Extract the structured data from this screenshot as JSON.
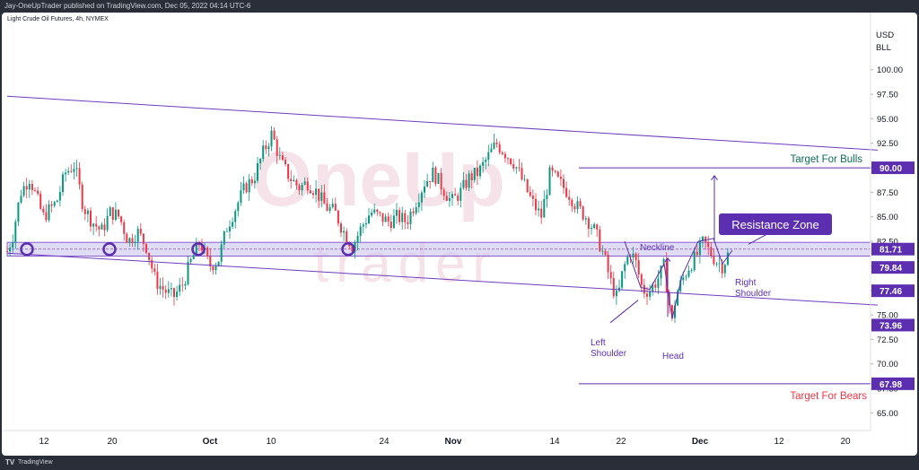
{
  "header": {
    "publisher": "Jay-OneUpTrader published on TradingView.com, Dec 05, 2022 04:14 UTC-6"
  },
  "chart_title": "Light Crude Oil Futures, 4h, NYMEX",
  "footer": {
    "brand_icon": "TV",
    "brand": "TradingView"
  },
  "watermark": "OneUp trader",
  "chart_data": {
    "type": "candlestick",
    "currency": "USD",
    "unit": "BLL",
    "y_ticks": [
      65.0,
      67.5,
      70.0,
      72.5,
      75.0,
      77.5,
      80.0,
      82.5,
      85.0,
      87.5,
      90.0,
      92.5,
      95.0,
      97.5,
      100.0
    ],
    "ylim": [
      63.3,
      104.0
    ],
    "x_ticks": [
      "12",
      "20",
      "Oct",
      "10",
      "24",
      "Nov",
      "14",
      "22",
      "Dec",
      "12",
      "20"
    ],
    "price_labels": [
      {
        "value": "90.00",
        "style": "target"
      },
      {
        "value": "81.71",
        "style": "resistance"
      },
      {
        "value": "79.84",
        "style": "normal"
      },
      {
        "value": "77.46",
        "style": "normal"
      },
      {
        "value": "73.96",
        "style": "normal"
      },
      {
        "value": "67.98",
        "style": "normal"
      }
    ],
    "resistance_zone": [
      81.0,
      82.4
    ],
    "price_path": [
      [
        0,
        81.5
      ],
      [
        6,
        83
      ],
      [
        15,
        87.5
      ],
      [
        25,
        89
      ],
      [
        40,
        85
      ],
      [
        55,
        86.5
      ],
      [
        65,
        89.5
      ],
      [
        75,
        90.3
      ],
      [
        85,
        86
      ],
      [
        95,
        84.5
      ],
      [
        105,
        83.5
      ],
      [
        115,
        85.5
      ],
      [
        125,
        85
      ],
      [
        135,
        82.5
      ],
      [
        145,
        83.5
      ],
      [
        155,
        82
      ],
      [
        165,
        78.5
      ],
      [
        175,
        77.5
      ],
      [
        185,
        76.8
      ],
      [
        195,
        78
      ],
      [
        205,
        80.5
      ],
      [
        215,
        82.5
      ],
      [
        225,
        80
      ],
      [
        235,
        80.5
      ],
      [
        245,
        84
      ],
      [
        255,
        86
      ],
      [
        265,
        88
      ],
      [
        275,
        89
      ],
      [
        285,
        91.5
      ],
      [
        295,
        93.5
      ],
      [
        305,
        90.5
      ],
      [
        315,
        89
      ],
      [
        325,
        88
      ],
      [
        335,
        88.5
      ],
      [
        345,
        87.5
      ],
      [
        355,
        86
      ],
      [
        365,
        85.5
      ],
      [
        375,
        83.5
      ],
      [
        385,
        82
      ],
      [
        395,
        84
      ],
      [
        405,
        85.5
      ],
      [
        415,
        85
      ],
      [
        425,
        84.5
      ],
      [
        435,
        85
      ],
      [
        445,
        84.5
      ],
      [
        455,
        86.5
      ],
      [
        465,
        88.5
      ],
      [
        475,
        89.5
      ],
      [
        485,
        88
      ],
      [
        495,
        86.5
      ],
      [
        505,
        87.5
      ],
      [
        515,
        89
      ],
      [
        525,
        89.5
      ],
      [
        535,
        91
      ],
      [
        545,
        92.5
      ],
      [
        555,
        91.5
      ],
      [
        565,
        90.5
      ],
      [
        575,
        88.5
      ],
      [
        585,
        86.5
      ],
      [
        595,
        85
      ],
      [
        605,
        89.5
      ],
      [
        615,
        88.5
      ],
      [
        625,
        87.5
      ],
      [
        635,
        86
      ],
      [
        645,
        85
      ],
      [
        655,
        83.5
      ],
      [
        665,
        81
      ],
      [
        672,
        78.5
      ],
      [
        680,
        76.5
      ],
      [
        686,
        79.5
      ],
      [
        694,
        81.5
      ],
      [
        700,
        80.5
      ],
      [
        708,
        77.5
      ],
      [
        716,
        77.5
      ],
      [
        724,
        78.5
      ],
      [
        732,
        80
      ],
      [
        737,
        76.5
      ],
      [
        741,
        74.2
      ],
      [
        745,
        77
      ],
      [
        752,
        78.5
      ],
      [
        760,
        80
      ],
      [
        768,
        81
      ],
      [
        776,
        82.5
      ],
      [
        782,
        81.5
      ],
      [
        790,
        80.5
      ],
      [
        797,
        80
      ],
      [
        805,
        81.5
      ]
    ],
    "trendlines": {
      "upper": [
        [
          0,
          97.3
        ],
        [
          970,
          91.8
        ]
      ],
      "lower": [
        [
          0,
          81.3
        ],
        [
          970,
          76.0
        ]
      ],
      "target_bulls": [
        [
          637,
          90.0
        ],
        [
          970,
          90.0
        ]
      ],
      "target_bears": [
        [
          637,
          67.98
        ],
        [
          970,
          67.98
        ]
      ]
    },
    "support_touch_x": [
      22,
      114,
      213,
      380
    ],
    "annotations": {
      "target_bulls": "Target For Bulls",
      "target_bears": "Target For Bears",
      "resistance_zone": "Resistance Zone",
      "neckline": "Neckline",
      "left_shoulder": [
        "Left",
        "Shoulder"
      ],
      "head": "Head",
      "right_shoulder": [
        "Right",
        "Shoulder"
      ]
    },
    "colors": {
      "up": "#089981",
      "down": "#f23645",
      "line": "#6c3dbf",
      "label": "#5b2fb0",
      "bulls": "#0b6b5a",
      "bears": "#f23645",
      "zone": "#c9c0ee",
      "grid": "#f0f3fa"
    }
  }
}
